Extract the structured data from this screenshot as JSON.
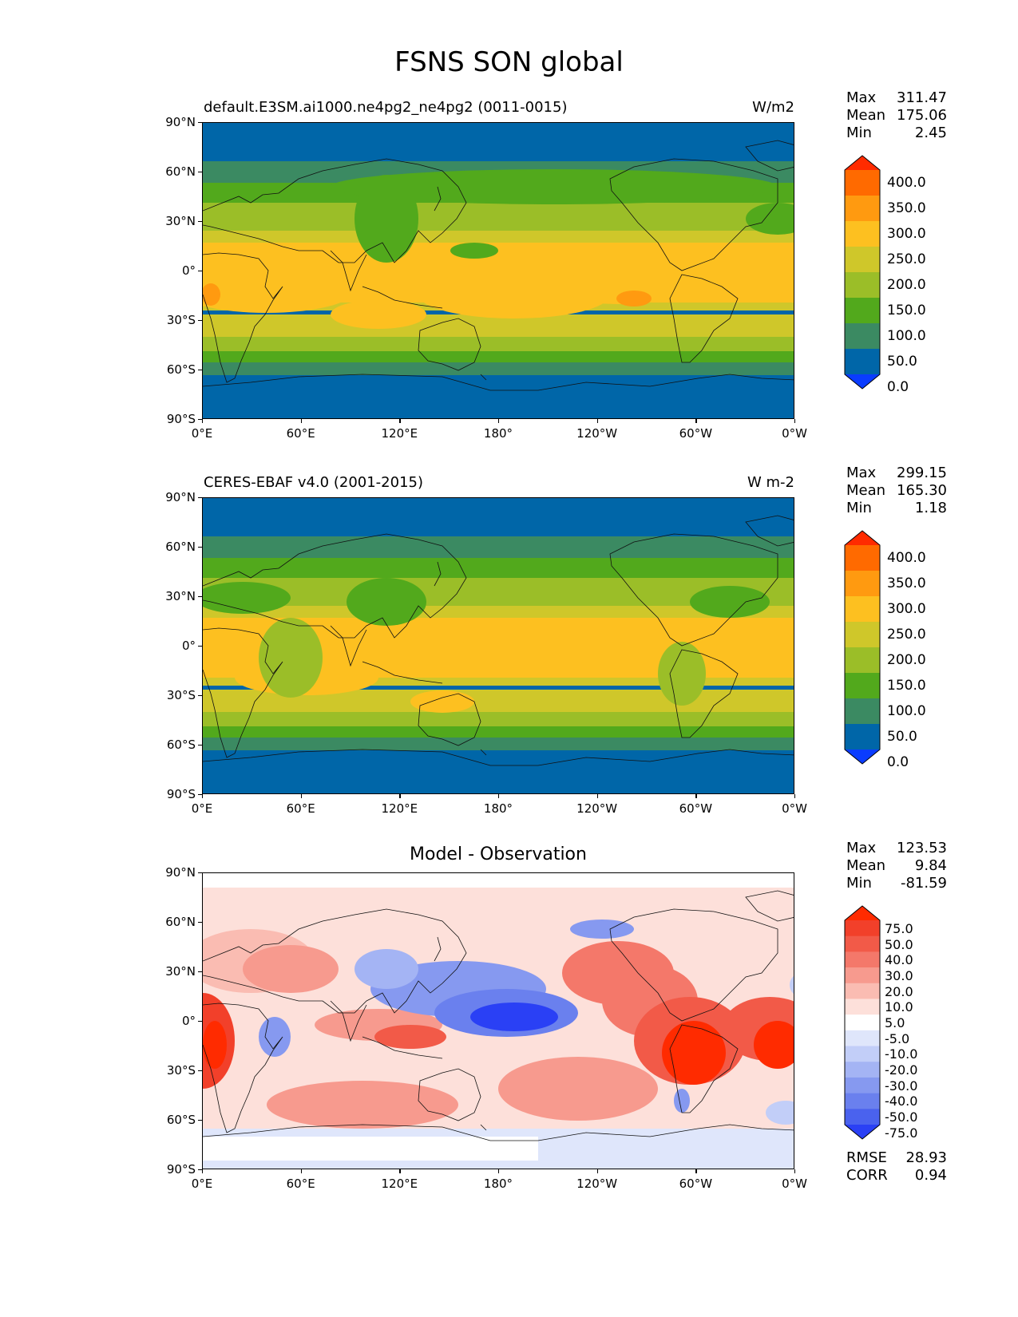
{
  "figure": {
    "title": "FSNS SON global"
  },
  "x_ticks": [
    "0°E",
    "60°E",
    "120°E",
    "180°",
    "120°W",
    "60°W",
    "0°W"
  ],
  "y_ticks": [
    "90°N",
    "60°N",
    "30°N",
    "0°",
    "30°S",
    "60°S",
    "90°S"
  ],
  "panels": [
    {
      "label_left": "default.E3SM.ai1000.ne4pg2_ne4pg2 (0011-0015)",
      "label_right": "W/m2",
      "title": "",
      "stats": {
        "max_label": "Max",
        "max": "311.47",
        "mean_label": "Mean",
        "mean": "175.06",
        "min_label": "Min",
        "min": "2.45"
      },
      "colorbar": {
        "labels": [
          "400.0",
          "350.0",
          "300.0",
          "250.0",
          "200.0",
          "150.0",
          "100.0",
          "50.0",
          "0.0"
        ],
        "colors": [
          "#ff2b00",
          "#ff6a00",
          "#ff9a10",
          "#fdc020",
          "#cfc72a",
          "#9bbe28",
          "#52a91c",
          "#3b8a62",
          "#0066a8",
          "#0a3cff"
        ]
      }
    },
    {
      "label_left": "CERES-EBAF v4.0 (2001-2015)",
      "label_right": "W m-2",
      "title": "",
      "stats": {
        "max_label": "Max",
        "max": "299.15",
        "mean_label": "Mean",
        "mean": "165.30",
        "min_label": "Min",
        "min": "1.18"
      },
      "colorbar": {
        "labels": [
          "400.0",
          "350.0",
          "300.0",
          "250.0",
          "200.0",
          "150.0",
          "100.0",
          "50.0",
          "0.0"
        ],
        "colors": [
          "#ff2b00",
          "#ff6a00",
          "#ff9a10",
          "#fdc020",
          "#cfc72a",
          "#9bbe28",
          "#52a91c",
          "#3b8a62",
          "#0066a8",
          "#0a3cff"
        ]
      }
    },
    {
      "label_left": "",
      "label_right": "",
      "title": "Model - Observation",
      "stats": {
        "max_label": "Max",
        "max": "123.53",
        "mean_label": "Mean",
        "mean": "9.84",
        "min_label": "Min",
        "min": "-81.59"
      },
      "extra_stats": {
        "rmse_label": "RMSE",
        "rmse": "28.93",
        "corr_label": "CORR",
        "corr": "0.94"
      },
      "colorbar": {
        "labels": [
          "75.0",
          "50.0",
          "40.0",
          "30.0",
          "20.0",
          "10.0",
          "5.0",
          "-5.0",
          "-10.0",
          "-20.0",
          "-30.0",
          "-40.0",
          "-50.0",
          "-75.0"
        ],
        "colors": [
          "#ff2b00",
          "#f2402a",
          "#f25a48",
          "#f4786a",
          "#f79a8e",
          "#fabcb2",
          "#fde0da",
          "#ffffff",
          "#dfe6fb",
          "#c2cef8",
          "#a4b4f4",
          "#8699f0",
          "#6a80ee",
          "#4a62ee",
          "#2a40f5"
        ]
      }
    }
  ]
}
